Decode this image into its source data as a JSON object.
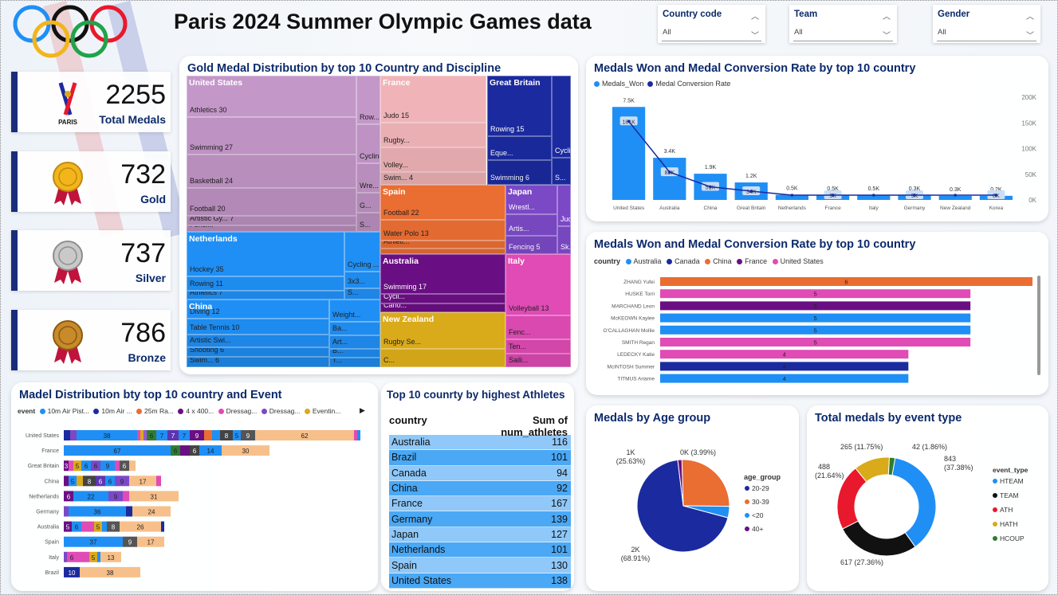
{
  "header": {
    "title": "Paris 2024 Summer Olympic Games data"
  },
  "slicers": [
    {
      "label": "Country code",
      "value": "All"
    },
    {
      "label": "Team",
      "value": "All"
    },
    {
      "label": "Gender",
      "value": "All"
    }
  ],
  "kpis": [
    {
      "value": "2255",
      "label": "Total Medals",
      "icon": "paris-logo"
    },
    {
      "value": "732",
      "label": "Gold",
      "icon": "gold-medal"
    },
    {
      "value": "737",
      "label": "Silver",
      "icon": "silver-medal"
    },
    {
      "value": "786",
      "label": "Bronze",
      "icon": "bronze-medal"
    }
  ],
  "paris_logo_text": "PARIS",
  "treemap": {
    "title": "Gold Medal Distribution by top 10 Country and Discipline"
  },
  "combo": {
    "title": "Medals Won and Medal Conversion Rate by top 10 country",
    "legend": [
      "Medals_Won",
      "Medal Conversion Rate"
    ]
  },
  "hbar": {
    "title": "Medals Won and Medal Conversion Rate by top 10 country",
    "legend_title": "country",
    "legend": [
      "Australia",
      "Canada",
      "China",
      "France",
      "United States"
    ]
  },
  "stacked": {
    "title": "Madel Distribution bty top 10 country and Event",
    "legend_title": "event",
    "legend": [
      "10m Air Pist...",
      "10m Air ...",
      "25m Ra...",
      "4 x 400...",
      "Dressag...",
      "Dressag...",
      "Eventin..."
    ]
  },
  "table": {
    "title": "Top 10 counrty by highest Athletes",
    "col1": "country",
    "col2": "Sum of num_athletes",
    "rows": [
      [
        "Australia",
        "116"
      ],
      [
        "Brazil",
        "101"
      ],
      [
        "Canada",
        "94"
      ],
      [
        "China",
        "92"
      ],
      [
        "France",
        "167"
      ],
      [
        "Germany",
        "139"
      ],
      [
        "Japan",
        "127"
      ],
      [
        "Netherlands",
        "101"
      ],
      [
        "Spain",
        "130"
      ],
      [
        "United States",
        "138"
      ]
    ]
  },
  "age": {
    "title": "Medals by Age group",
    "legend_title": "age_group"
  },
  "event_type": {
    "title": "Total medals by event type",
    "legend_title": "event_type"
  },
  "chart_data": [
    {
      "type": "treemap",
      "title": "Gold Medal Distribution by top 10 Country and Discipline",
      "groups": [
        {
          "name": "United States",
          "color": "#c497c9",
          "items": [
            [
              "Athletics 30",
              30
            ],
            [
              "Swimming 27",
              27
            ],
            [
              "Basketball 24",
              24
            ],
            [
              "Football 20",
              20
            ],
            [
              "Artistic Gy... 7",
              7
            ],
            [
              "Fenci...",
              5
            ],
            [
              "Row...",
              5
            ],
            [
              "Cycling Trac...",
              4
            ],
            [
              "Wre...",
              3
            ],
            [
              "G...",
              2
            ],
            [
              "S...",
              2
            ]
          ]
        },
        {
          "name": "France",
          "color": "#f0b4b8",
          "items": [
            [
              "Judo 15",
              15
            ],
            [
              "Rugby...",
              8
            ],
            [
              "Volley...",
              8
            ],
            [
              "Swim... 4",
              4
            ]
          ]
        },
        {
          "name": "Great Britain",
          "color": "#1b2a9e",
          "items": [
            [
              "Rowing 15",
              15
            ],
            [
              "Eque...",
              6
            ],
            [
              "Swimming 6",
              6
            ],
            [
              "Cycling Tr...",
              6
            ],
            [
              "S...",
              2
            ]
          ]
        },
        {
          "name": "Netherlands",
          "color": "#1f8ff5",
          "items": [
            [
              "Hockey 35",
              35
            ],
            [
              "Rowing 11",
              11
            ],
            [
              "Athletics 7",
              7
            ],
            [
              "Cycling ...",
              7
            ],
            [
              "3x3...",
              3
            ],
            [
              "S...",
              2
            ]
          ]
        },
        {
          "name": "Spain",
          "color": "#ea6d32",
          "items": [
            [
              "Football 22",
              22
            ],
            [
              "Water Polo 13",
              13
            ],
            [
              "Athleti...",
              5
            ],
            [
              "Sai...",
              4
            ]
          ]
        },
        {
          "name": "Japan",
          "color": "#7b49c6",
          "items": [
            [
              "Wrestl...",
              8
            ],
            [
              "Artis...",
              6
            ],
            [
              "Fencing 5",
              5
            ],
            [
              "Judo 3",
              3
            ],
            [
              "Sk...",
              2
            ]
          ]
        },
        {
          "name": "China",
          "color": "#1f8ff5",
          "items": [
            [
              "Diving 12",
              12
            ],
            [
              "Table Tennis 10",
              10
            ],
            [
              "Artistic Swi...",
              8
            ],
            [
              "Shooting 6",
              6
            ],
            [
              "Swim... 6",
              6
            ],
            [
              "Weight...",
              5
            ],
            [
              "Ba...",
              3
            ],
            [
              "Art...",
              3
            ],
            [
              "B...",
              2
            ],
            [
              "T...",
              2
            ]
          ]
        },
        {
          "name": "Australia",
          "color": "#6a0f83",
          "items": [
            [
              "Swimming 17",
              17
            ],
            [
              "Cycli...",
              4
            ],
            [
              "Cano...",
              4
            ]
          ]
        },
        {
          "name": "Italy",
          "color": "#e04bb5",
          "items": [
            [
              "Volleyball 13",
              13
            ],
            [
              "Fenc...",
              5
            ],
            [
              "Ten...",
              3
            ],
            [
              "Saili...",
              3
            ]
          ]
        },
        {
          "name": "New Zealand",
          "color": "#d9aa1a",
          "items": [
            [
              "Rugby Se...",
              6
            ],
            [
              "C...",
              3
            ]
          ]
        }
      ]
    },
    {
      "type": "bar+line",
      "title": "Medals Won and Medal Conversion Rate by top 10 country",
      "categories": [
        "United States",
        "Australia",
        "China",
        "Great Britain",
        "Netherlands",
        "France",
        "Italy",
        "Germany",
        "New Zealand",
        "Korea"
      ],
      "series": [
        {
          "name": "Medals_Won",
          "values": [
            7500,
            3400,
            1900,
            1200,
            500,
            500,
            500,
            300,
            300,
            200
          ],
          "labels": [
            "7.5K",
            "3.4K",
            "1.9K",
            "1.2K",
            "0.5K",
            "0.5K",
            "0.5K",
            "0.3K",
            "0.3K",
            "0.2K"
          ]
        },
        {
          "name": "Medal Conversion Rate",
          "values": [
            181000,
            82000,
            51000,
            34000,
            10000,
            9000,
            9000,
            9000,
            8000,
            8000
          ],
          "labels": [
            "181K",
            "82K",
            "51K",
            "34K",
            "",
            "9K",
            "",
            "9K",
            "",
            "8K"
          ]
        }
      ],
      "y2ticks": [
        "0K",
        "50K",
        "100K",
        "150K",
        "200K"
      ]
    },
    {
      "type": "bar",
      "orientation": "horizontal",
      "title": "Medals Won and Medal Conversion Rate by top 10 country",
      "categories": [
        "ZHANG Yufei",
        "HUSKE Torri",
        "MARCHAND Leon",
        "McKEOWN Kaylee",
        "O'CALLAGHAN Mollie",
        "SMITH Regan",
        "LEDECKY Katie",
        "McINTOSH Summer",
        "TITMUS Ariarne"
      ],
      "values": [
        6,
        5,
        5,
        5,
        5,
        5,
        4,
        4,
        4
      ],
      "colors": [
        "#ea6d32",
        "#e04bb5",
        "#6a0f83",
        "#1f8ff5",
        "#1f8ff5",
        "#e04bb5",
        "#e04bb5",
        "#1b2a9e",
        "#1f8ff5"
      ]
    },
    {
      "type": "stacked-bar",
      "title": "Madel Distribution bty top 10 country and Event",
      "categories": [
        "United States",
        "France",
        "Great Britain",
        "China",
        "Netherlands",
        "Germany",
        "Australia",
        "Spain",
        "Italy",
        "Brazil"
      ],
      "rows": [
        [
          [
            4,
            "#1b2a9e",
            ""
          ],
          [
            4,
            "#7b49c6",
            ""
          ],
          [
            38,
            "#1f8ff5",
            "38"
          ],
          [
            2,
            "#e04bb5",
            ""
          ],
          [
            2,
            "#d9aa1a",
            ""
          ],
          [
            2,
            "#9b59d0",
            ""
          ],
          [
            6,
            "#2e7d32",
            "6"
          ],
          [
            7,
            "#1f8ff5",
            "7"
          ],
          [
            7,
            "#5e35b1",
            "7"
          ],
          [
            7,
            "#1f8ff5",
            "7"
          ],
          [
            9,
            "#6a0f83",
            "9"
          ],
          [
            5,
            "#ea6d32",
            ""
          ],
          [
            5,
            "#1f8ff5",
            ""
          ],
          [
            8,
            "#444",
            "8"
          ],
          [
            5,
            "#1f8ff5",
            "5"
          ],
          [
            9,
            "#555",
            "9"
          ],
          [
            62,
            "#f7c08a",
            "62"
          ],
          [
            2,
            "#e04bb5",
            ""
          ],
          [
            2,
            "#1f8ff5",
            ""
          ]
        ],
        [
          [
            67,
            "#1f8ff5",
            "67"
          ],
          [
            6,
            "#2e7d32",
            "6"
          ],
          [
            6,
            "#6a0f83",
            ""
          ],
          [
            6,
            "#444",
            "6"
          ],
          [
            14,
            "#1f8ff5",
            "14"
          ],
          [
            30,
            "#f7c08a",
            "30"
          ]
        ],
        [
          [
            3,
            "#6a0f83",
            "3"
          ],
          [
            3,
            "#e04bb5",
            ""
          ],
          [
            5,
            "#d9aa1a",
            "5"
          ],
          [
            6,
            "#1f8ff5",
            "6"
          ],
          [
            6,
            "#7b49c6",
            "6"
          ],
          [
            9,
            "#1f8ff5",
            "9"
          ],
          [
            3,
            "#e04bb5",
            ""
          ],
          [
            6,
            "#555",
            "6"
          ],
          [
            4,
            "#f7c08a",
            ""
          ]
        ],
        [
          [
            3,
            "#6a0f83",
            ""
          ],
          [
            5,
            "#1f8ff5",
            "5"
          ],
          [
            4,
            "#d9aa1a",
            ""
          ],
          [
            8,
            "#444",
            "8"
          ],
          [
            6,
            "#5e35b1",
            "6"
          ],
          [
            6,
            "#1f8ff5",
            "6"
          ],
          [
            9,
            "#7b49c6",
            "9"
          ],
          [
            17,
            "#f7c08a",
            "17"
          ],
          [
            3,
            "#e04bb5",
            ""
          ]
        ],
        [
          [
            6,
            "#6a0f83",
            "6"
          ],
          [
            22,
            "#1f8ff5",
            "22"
          ],
          [
            9,
            "#7b49c6",
            "9"
          ],
          [
            4,
            "#e04bb5",
            ""
          ],
          [
            31,
            "#f7c08a",
            "31"
          ]
        ],
        [
          [
            3,
            "#7b49c6",
            ""
          ],
          [
            36,
            "#1f8ff5",
            "36"
          ],
          [
            4,
            "#1b2a9e",
            ""
          ],
          [
            24,
            "#f7c08a",
            "24"
          ]
        ],
        [
          [
            5,
            "#6a0f83",
            "5"
          ],
          [
            6,
            "#1f8ff5",
            "6"
          ],
          [
            8,
            "#e04bb5",
            ""
          ],
          [
            5,
            "#d9aa1a",
            "5"
          ],
          [
            3,
            "#1f8ff5",
            ""
          ],
          [
            8,
            "#555",
            "8"
          ],
          [
            26,
            "#f7c08a",
            "26"
          ],
          [
            2,
            "#1b2a9e",
            ""
          ]
        ],
        [
          [
            37,
            "#1f8ff5",
            "37"
          ],
          [
            9,
            "#555",
            "9"
          ],
          [
            17,
            "#f7c08a",
            "17"
          ]
        ],
        [
          [
            2,
            "#7b49c6",
            ""
          ],
          [
            6,
            "#e04bb5",
            "6"
          ],
          [
            8,
            "#e04bb5",
            ""
          ],
          [
            5,
            "#d9aa1a",
            "5"
          ],
          [
            2,
            "#1f8ff5",
            ""
          ],
          [
            13,
            "#f7c08a",
            "13"
          ]
        ],
        [
          [
            10,
            "#1b2a9e",
            "10"
          ],
          [
            38,
            "#f7c08a",
            "38"
          ]
        ]
      ]
    },
    {
      "type": "pie",
      "title": "Medals by Age group",
      "slices": [
        {
          "label": "20-29",
          "value": 68.91,
          "text": "2K\n(68.91%)",
          "color": "#1b2a9e"
        },
        {
          "label": "30-39",
          "value": 25.63,
          "text": "1K\n(25.63%)",
          "color": "#ea6d32"
        },
        {
          "label": "<20",
          "value": 3.99,
          "text": "0K (3.99%)",
          "color": "#1f8ff5"
        },
        {
          "label": "40+",
          "value": 1.47,
          "text": "",
          "color": "#6a0f83"
        }
      ]
    },
    {
      "type": "donut",
      "title": "Total medals by event type",
      "slices": [
        {
          "label": "HTEAM",
          "value": 843,
          "text": "843\n(37.38%)",
          "color": "#1f8ff5"
        },
        {
          "label": "TEAM",
          "value": 617,
          "text": "617 (27.36%)",
          "color": "#111"
        },
        {
          "label": "ATH",
          "value": 488,
          "text": "488\n(21.64%)",
          "color": "#e8192c"
        },
        {
          "label": "HATH",
          "value": 265,
          "text": "265 (11.75%)",
          "color": "#d9aa1a"
        },
        {
          "label": "HCOUP",
          "value": 42,
          "text": "42 (1.86%)",
          "color": "#2e7d32"
        }
      ]
    }
  ]
}
